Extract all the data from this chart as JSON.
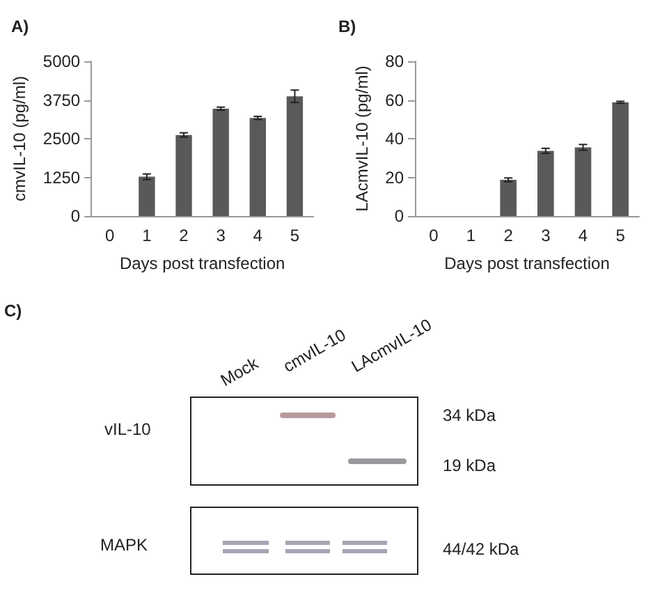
{
  "chart_data": [
    {
      "type": "bar",
      "title": "A)",
      "xlabel": "Days post transfection",
      "ylabel": "cmvIL-10 (pg/ml)",
      "categories": [
        "0",
        "1",
        "2",
        "3",
        "4",
        "5"
      ],
      "values": [
        0,
        1270,
        2620,
        3470,
        3170,
        3870
      ],
      "errors": [
        null,
        90,
        70,
        50,
        50,
        200
      ],
      "color": "#595959",
      "ylim": [
        0,
        5000
      ],
      "yticks": [
        0,
        1250,
        2500,
        3750,
        5000
      ]
    },
    {
      "type": "bar",
      "title": "B)",
      "xlabel": "Days post transfection",
      "ylabel": "LAcmvIL-10 (pg/ml)",
      "categories": [
        "0",
        "1",
        "2",
        "3",
        "4",
        "5"
      ],
      "values": [
        0,
        0,
        18.7,
        33.7,
        35.5,
        58.8
      ],
      "errors": [
        null,
        null,
        1,
        1.3,
        1.5,
        0.5
      ],
      "color": "#595959",
      "ylim": [
        0,
        80
      ],
      "yticks": [
        0,
        20,
        40,
        60,
        80
      ]
    },
    {
      "type": "other",
      "title": "C)",
      "annotations": [
        "Mock",
        "cmvIL-10",
        "LAcmvIL-10",
        "vIL-10",
        "MAPK",
        "34 kDa",
        "19 kDa",
        "44/42 kDa"
      ]
    }
  ]
}
